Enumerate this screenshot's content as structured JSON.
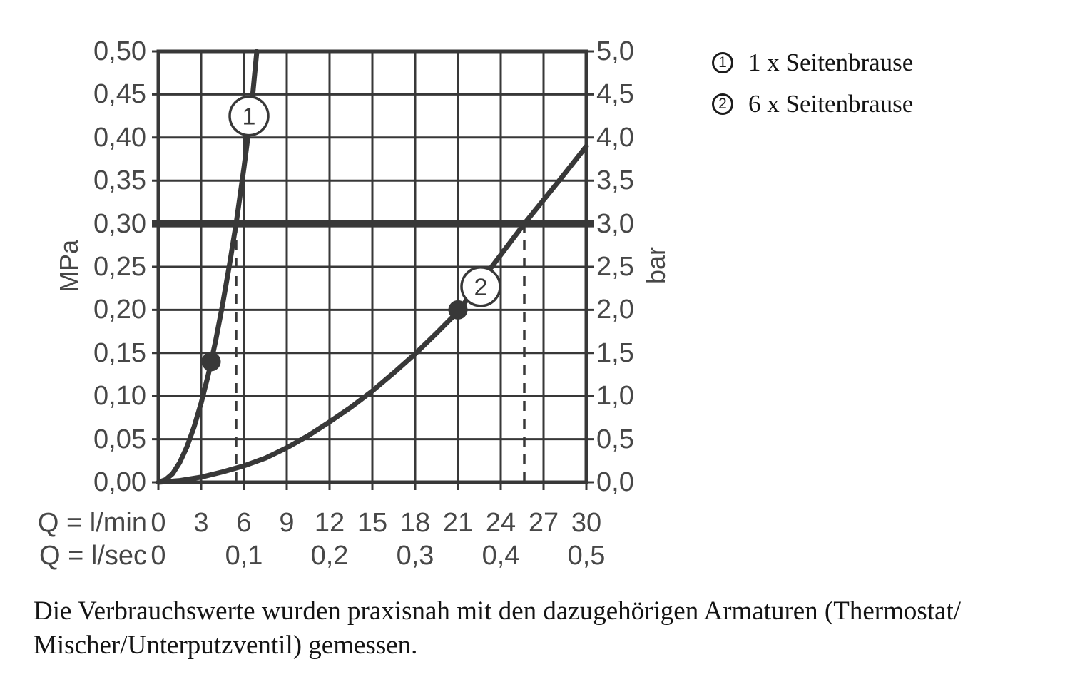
{
  "colors": {
    "line": "#383838",
    "text": "#474747",
    "label_text": "#141414"
  },
  "left_axis": {
    "unit": "MPa",
    "ticks": [
      "0,50",
      "0,45",
      "0,40",
      "0,35",
      "0,30",
      "0,25",
      "0,20",
      "0,15",
      "0,10",
      "0,05",
      "0,00"
    ]
  },
  "right_axis": {
    "unit": "bar",
    "ticks": [
      "5,0",
      "4,5",
      "4,0",
      "3,5",
      "3,0",
      "2,5",
      "2,0",
      "1,5",
      "1,0",
      "0,5",
      "0,0"
    ]
  },
  "x_axis": {
    "lmin_label": "Q = l/min",
    "lmin_ticks": [
      "0",
      "3",
      "6",
      "9",
      "12",
      "15",
      "18",
      "21",
      "24",
      "27",
      "30"
    ],
    "lsec_label": "Q = l/sec",
    "lsec_ticks": [
      {
        "v": "0",
        "q": 0
      },
      {
        "v": "0,1",
        "q": 6
      },
      {
        "v": "0,2",
        "q": 12
      },
      {
        "v": "0,3",
        "q": 18
      },
      {
        "v": "0,4",
        "q": 24
      },
      {
        "v": "0,5",
        "q": 30
      }
    ]
  },
  "legend": [
    {
      "num": "1",
      "label": "1 x Seitenbrause"
    },
    {
      "num": "2",
      "label": "6 x Seitenbrause"
    }
  ],
  "footer": {
    "line1": "Die Verbrauchswerte wurden praxisnah mit den dazugehörigen Armaturen (Thermostat/",
    "line2": "Mischer/Unterputzventil) gemessen."
  },
  "chart_data": {
    "type": "line",
    "title": "",
    "grid": true,
    "legend_position": "top-right",
    "x_axis": {
      "label_primary": "Q = l/min",
      "range": [
        0,
        30
      ],
      "tick_step": 3,
      "label_secondary": "Q = l/sec",
      "secondary_range": [
        0,
        0.5
      ],
      "secondary_tick_step": 0.1
    },
    "y_axis_left": {
      "label": "MPa",
      "range": [
        0,
        0.5
      ],
      "tick_step": 0.05
    },
    "y_axis_right": {
      "label": "bar",
      "range": [
        0,
        5
      ],
      "tick_step": 0.5
    },
    "reference_line": {
      "mpa": 0.3,
      "bar": 3.0
    },
    "dashed_guides_lmin": [
      5.45,
      25.65
    ],
    "series": [
      {
        "id": "1",
        "name": "1 x Seitenbrause",
        "marker": {
          "q": 3.7,
          "mpa": 0.14
        },
        "label_at": {
          "q": 6.35,
          "mpa": 0.425
        },
        "points": [
          [
            0,
            0
          ],
          [
            0.5,
            0.003
          ],
          [
            1,
            0.01
          ],
          [
            1.5,
            0.023
          ],
          [
            2,
            0.041
          ],
          [
            2.5,
            0.064
          ],
          [
            3,
            0.092
          ],
          [
            3.5,
            0.125
          ],
          [
            3.7,
            0.14
          ],
          [
            4,
            0.163
          ],
          [
            4.5,
            0.206
          ],
          [
            5,
            0.254
          ],
          [
            5.45,
            0.3
          ],
          [
            6,
            0.365
          ],
          [
            6.5,
            0.43
          ],
          [
            6.9,
            0.5
          ]
        ]
      },
      {
        "id": "2",
        "name": "6 x Seitenbrause",
        "marker": {
          "q": 21,
          "mpa": 0.2
        },
        "label_at": {
          "q": 22.6,
          "mpa": 0.227
        },
        "points": [
          [
            0,
            0
          ],
          [
            1.5,
            0.002
          ],
          [
            3,
            0.006
          ],
          [
            4.5,
            0.012
          ],
          [
            6,
            0.019
          ],
          [
            7.5,
            0.028
          ],
          [
            9,
            0.04
          ],
          [
            10.5,
            0.054
          ],
          [
            12,
            0.07
          ],
          [
            13.5,
            0.087
          ],
          [
            15,
            0.106
          ],
          [
            16.5,
            0.127
          ],
          [
            18,
            0.149
          ],
          [
            19.5,
            0.173
          ],
          [
            21,
            0.198
          ],
          [
            23,
            0.242
          ],
          [
            25.65,
            0.3
          ],
          [
            28,
            0.348
          ],
          [
            30,
            0.39
          ]
        ]
      }
    ]
  }
}
